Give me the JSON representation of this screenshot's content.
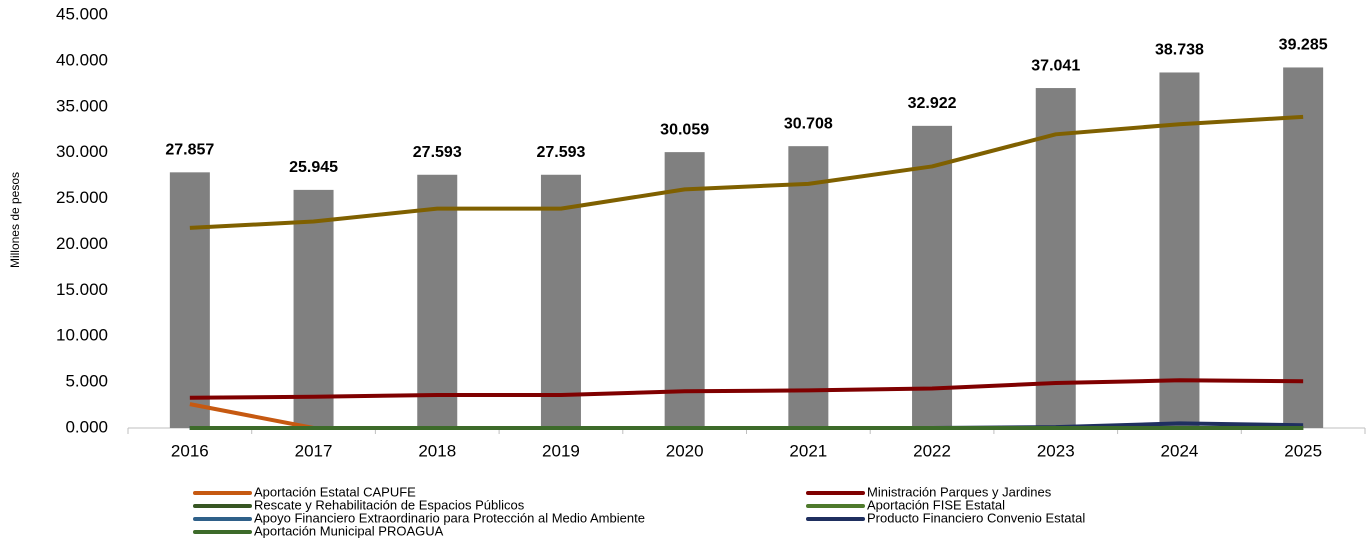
{
  "chart_data": {
    "type": "bar",
    "y_label": "Millones de pesos",
    "categories": [
      "2016",
      "2017",
      "2018",
      "2019",
      "2020",
      "2021",
      "2022",
      "2023",
      "2024",
      "2025"
    ],
    "values": [
      27857,
      25945,
      27593,
      27593,
      30059,
      30708,
      32922,
      37041,
      38738,
      39285
    ],
    "value_labels": [
      "27.857",
      "25.945",
      "27.593",
      "27.593",
      "30.059",
      "30.708",
      "32.922",
      "37.041",
      "38.738",
      "39.285"
    ],
    "color": "#808080",
    "ylim": [
      0,
      45000
    ],
    "yticks": [
      {
        "value": 0,
        "label": "0.000"
      },
      {
        "value": 5000,
        "label": "5.000"
      },
      {
        "value": 10000,
        "label": "10.000"
      },
      {
        "value": 15000,
        "label": "15.000"
      },
      {
        "value": 20000,
        "label": "20.000"
      },
      {
        "value": 25000,
        "label": "25.000"
      },
      {
        "value": 30000,
        "label": "30.000"
      },
      {
        "value": 35000,
        "label": "35.000"
      },
      {
        "value": 40000,
        "label": "40.000"
      },
      {
        "value": 45000,
        "label": "45.000"
      }
    ],
    "series": [
      {
        "name": "Aportación Estatal CAPUFE",
        "color": "#c65911",
        "values": [
          2600,
          0,
          0,
          0,
          0,
          0,
          0,
          0,
          0,
          0
        ]
      },
      {
        "name": "Ministración Parques y Jardines",
        "color": "#7f0000",
        "values": [
          3300,
          3400,
          3600,
          3600,
          4000,
          4100,
          4300,
          4900,
          5200,
          5100
        ]
      },
      {
        "name": "Rescate y Rehabilitación de Espacios Públicos",
        "color": "#375623",
        "values": [
          0,
          0,
          0,
          0,
          0,
          0,
          0,
          0,
          0,
          0
        ]
      },
      {
        "name": "Aportación FISE Estatal",
        "color": "#4e7a2c",
        "values": [
          0,
          0,
          0,
          0,
          0,
          0,
          0,
          0,
          0,
          0
        ]
      },
      {
        "name": "Apoyo Financiero Extraordinario para Protección al Medio Ambiente",
        "color": "#2f6089",
        "values": [
          0,
          0,
          0,
          0,
          0,
          0,
          0,
          0,
          0,
          0
        ]
      },
      {
        "name": "Producto Financiero Convenio Estatal",
        "color": "#1f2f5f",
        "values": [
          0,
          0,
          0,
          0,
          0,
          0,
          0,
          100,
          500,
          300
        ]
      },
      {
        "name": "Aportación Municipal PROAGUA",
        "color": "#3d6b2a",
        "values": [
          0,
          0,
          0,
          0,
          0,
          0,
          0,
          0,
          0,
          0
        ]
      },
      {
        "color": "#7f6000",
        "values": [
          21800,
          22500,
          23900,
          23900,
          26000,
          26600,
          28500,
          32000,
          33100,
          33900
        ]
      }
    ]
  }
}
